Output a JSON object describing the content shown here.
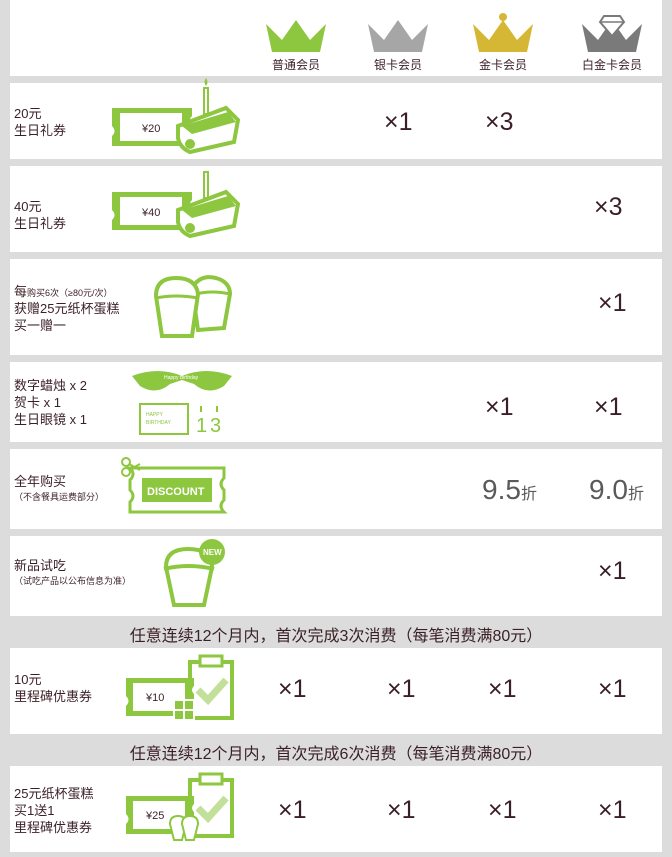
{
  "tiers": [
    {
      "label": "普通会员",
      "color": "#8dc63f"
    },
    {
      "label": "银卡会员",
      "color": "#a6a6a6"
    },
    {
      "label": "金卡会员",
      "color": "#d6b735"
    },
    {
      "label": "白金卡会员",
      "color": "#7a7a7a"
    }
  ],
  "rows": {
    "r20": {
      "line1": "20元",
      "line2": "生日礼券",
      "ticket": "¥20",
      "silver": "×1",
      "gold": "×3"
    },
    "r40": {
      "line1": "40元",
      "line2": "生日礼券",
      "ticket": "¥40",
      "platinum": "×3"
    },
    "r6x": {
      "line1a": "每",
      "line1b": "购买6次（≥80元/次）",
      "line2": "获赠25元纸杯蛋糕",
      "line3": "买一赠一",
      "platinum": "×1"
    },
    "rkit": {
      "line1": "数字蜡烛 x 2",
      "line2": "贺卡 x 1",
      "line3": "生日眼镜 x 1",
      "gold": "×1",
      "platinum": "×1",
      "glasses_text": "Happy Birthday",
      "card_text1": "HAPPY",
      "card_text2": "BIRTHDAY"
    },
    "rdisc": {
      "line1": "全年购买",
      "line2": "（不含餐具运费部分）",
      "ticket": "DISCOUNT",
      "gold_num": "9.5",
      "gold_unit": "折",
      "plat_num": "9.0",
      "plat_unit": "折"
    },
    "rnew": {
      "line1": "新品试吃",
      "line2": "（试吃产品以公布信息为准）",
      "badge": "NEW",
      "platinum": "×1"
    }
  },
  "bar1": "任意连续12个月内，首次完成3次消费（每笔消费满80元）",
  "r10": {
    "line1": "10元",
    "line2": "里程碑优惠券",
    "ticket": "¥10",
    "normal": "×1",
    "silver": "×1",
    "gold": "×1",
    "platinum": "×1"
  },
  "bar2": "任意连续12个月内，首次完成6次消费（每笔消费满80元）",
  "r25": {
    "line1": "25元纸杯蛋糕",
    "line2": "买1送1",
    "line3": "里程碑优惠券",
    "ticket": "¥25",
    "normal": "×1",
    "silver": "×1",
    "gold": "×1",
    "platinum": "×1"
  }
}
